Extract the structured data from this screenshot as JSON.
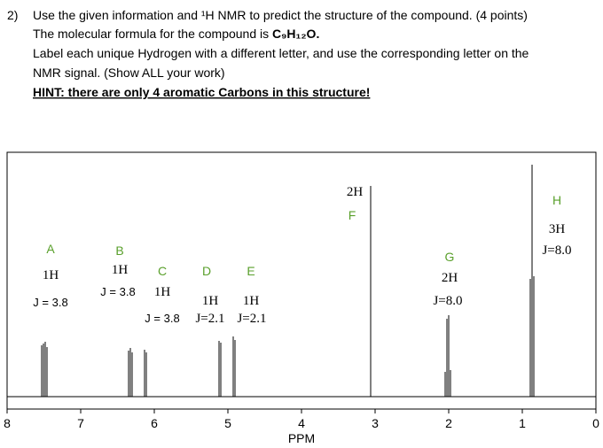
{
  "question": {
    "number": "2)",
    "line1": "Use the given information and ¹H NMR to predict the structure of the compound. (4 points)",
    "line2": "The molecular formula for the compound is ",
    "formula": "C₉H₁₂O.",
    "line3": "Label each unique Hydrogen with a different letter, and use the corresponding letter on the",
    "line4": "NMR signal. (Show ALL your work)",
    "hint": "HINT: there are only 4 aromatic Carbons in this structure!"
  },
  "spectrum": {
    "x_label": "PPM",
    "xlim": [
      8,
      0
    ],
    "xticks": [
      8,
      7,
      6,
      5,
      4,
      3,
      2,
      1,
      0
    ],
    "annotations": {
      "A": {
        "letter": "A",
        "integration": "1H",
        "j": "J = 3.8"
      },
      "B": {
        "letter": "B",
        "integration": "1H",
        "j": "J = 3.8"
      },
      "C": {
        "letter": "C",
        "integration": "1H",
        "j": "J = 3.8"
      },
      "D": {
        "letter": "D",
        "integration": "1H",
        "j": "J=2.1"
      },
      "E": {
        "letter": "E",
        "integration": "1H",
        "j": "J=2.1"
      },
      "F": {
        "letter": "F",
        "integration": "2H"
      },
      "G": {
        "letter": "G",
        "integration": "2H",
        "j": "J=8.0"
      },
      "H": {
        "letter": "H",
        "integration": "3H",
        "j": "J=8.0"
      }
    }
  }
}
